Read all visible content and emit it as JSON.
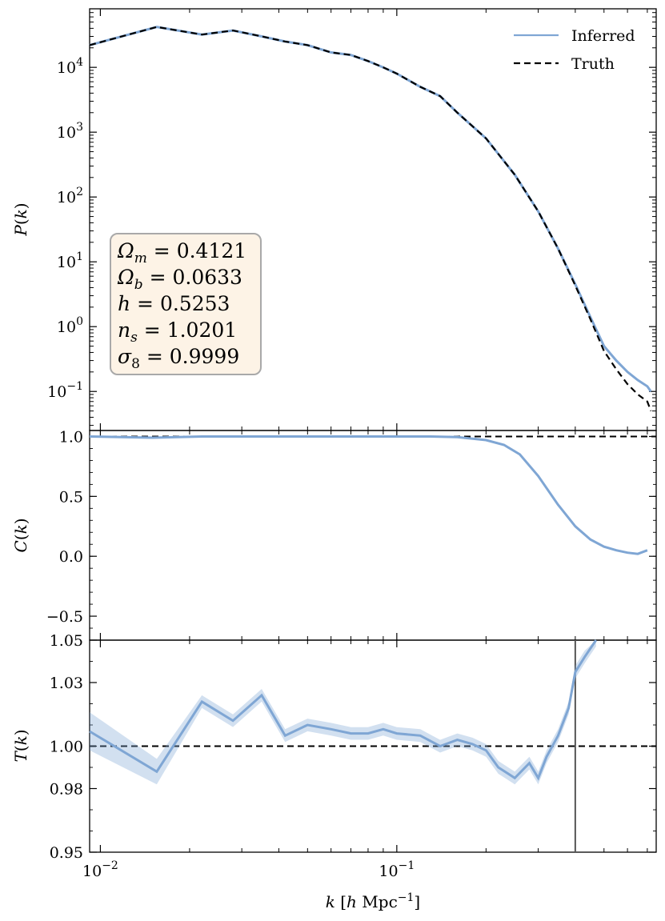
{
  "chart_data": [
    {
      "type": "line",
      "panel": "power-spectrum",
      "ylabel": "P(k)",
      "yscale": "log",
      "xscale": "log",
      "xlim": [
        0.0092,
        0.75
      ],
      "ylim": [
        0.025,
        80000
      ],
      "yticks": [
        {
          "value": 10000,
          "base": "10",
          "exp": "4"
        },
        {
          "value": 1000,
          "base": "10",
          "exp": "3"
        },
        {
          "value": 100,
          "base": "10",
          "exp": "2"
        },
        {
          "value": 10,
          "base": "10",
          "exp": "1"
        },
        {
          "value": 1,
          "base": "10",
          "exp": "0"
        },
        {
          "value": 0.1,
          "base": "10",
          "exp": "−1"
        }
      ],
      "legend": {
        "placement": "top-right",
        "entries": [
          "Inferred",
          "Truth"
        ]
      },
      "params_box": [
        {
          "sym": "Ω",
          "sub": "m",
          "rest": " = 0.4121"
        },
        {
          "sym": "Ω",
          "sub": "b",
          "rest": " = 0.0633"
        },
        {
          "sym": "h",
          "sub": "",
          "rest": " = 0.5253"
        },
        {
          "sym": "n",
          "sub": "s",
          "rest": " = 1.0201"
        },
        {
          "sym": "σ",
          "sub": "8",
          "rest": " = 0.9999"
        }
      ],
      "x": [
        0.0092,
        0.0155,
        0.022,
        0.028,
        0.035,
        0.042,
        0.05,
        0.06,
        0.07,
        0.08,
        0.09,
        0.1,
        0.12,
        0.14,
        0.16,
        0.2,
        0.25,
        0.3,
        0.35,
        0.4,
        0.45,
        0.5,
        0.55,
        0.6,
        0.65,
        0.7,
        0.72
      ],
      "series": [
        {
          "name": "Inferred",
          "color": "#7fa6d4",
          "style": "solid",
          "values": [
            22000,
            42000,
            32000,
            37000,
            30000,
            25000,
            22000,
            17000,
            15500,
            12500,
            10000,
            8000,
            5000,
            3600,
            2000,
            800,
            220,
            60,
            16,
            4.5,
            1.4,
            0.5,
            0.3,
            0.2,
            0.15,
            0.12,
            0.1
          ]
        },
        {
          "name": "Truth",
          "color": "#000000",
          "style": "dashed",
          "values": [
            22000,
            42000,
            32000,
            37000,
            30000,
            25000,
            22000,
            17000,
            15500,
            12500,
            10000,
            8000,
            5000,
            3600,
            2000,
            800,
            220,
            60,
            16,
            4.3,
            1.3,
            0.42,
            0.22,
            0.13,
            0.09,
            0.07,
            0.05
          ]
        }
      ]
    },
    {
      "type": "line",
      "panel": "cross-correlation",
      "ylabel": "C(k)",
      "xscale": "log",
      "xlim": [
        0.0092,
        0.75
      ],
      "ylim": [
        -0.7,
        1.05
      ],
      "yticks": [
        {
          "value": 1.0,
          "label": "1.0"
        },
        {
          "value": 0.5,
          "label": "0.5"
        },
        {
          "value": 0.0,
          "label": "0.0"
        },
        {
          "value": -0.5,
          "label": "−0.5"
        }
      ],
      "reference_line": 1.0,
      "x": [
        0.0092,
        0.015,
        0.022,
        0.03,
        0.05,
        0.08,
        0.1,
        0.13,
        0.16,
        0.2,
        0.23,
        0.26,
        0.3,
        0.35,
        0.4,
        0.45,
        0.5,
        0.55,
        0.6,
        0.65,
        0.7
      ],
      "series": [
        {
          "name": "Inferred",
          "color": "#7fa6d4",
          "values": [
            1.0,
            0.99,
            1.0,
            1.0,
            1.0,
            1.0,
            1.0,
            1.0,
            0.995,
            0.97,
            0.93,
            0.85,
            0.67,
            0.43,
            0.25,
            0.14,
            0.08,
            0.05,
            0.03,
            0.02,
            0.05
          ]
        }
      ]
    },
    {
      "type": "line",
      "panel": "transfer-function",
      "ylabel": "T(k)",
      "xlabel": "k [h Mpc⁻¹]",
      "xscale": "log",
      "xlim": [
        0.0092,
        0.75
      ],
      "ylim": [
        0.95,
        1.05
      ],
      "xticks": [
        {
          "value": 0.01,
          "base": "10",
          "exp": "−2"
        },
        {
          "value": 0.1,
          "base": "10",
          "exp": "−1"
        }
      ],
      "yticks": [
        {
          "value": 1.05,
          "label": "1.05"
        },
        {
          "value": 1.03,
          "label": "1.03"
        },
        {
          "value": 1.0,
          "label": "1.00"
        },
        {
          "value": 0.98,
          "label": "0.98"
        },
        {
          "value": 0.95,
          "label": "0.95"
        }
      ],
      "reference_line": 1.0,
      "vertical_line": 0.4,
      "x": [
        0.0092,
        0.0155,
        0.022,
        0.028,
        0.035,
        0.042,
        0.05,
        0.06,
        0.07,
        0.08,
        0.09,
        0.1,
        0.12,
        0.14,
        0.16,
        0.18,
        0.2,
        0.22,
        0.25,
        0.28,
        0.3,
        0.32,
        0.35,
        0.38,
        0.4,
        0.43,
        0.47
      ],
      "series": [
        {
          "name": "Inferred",
          "color": "#7fa6d4",
          "values": [
            1.007,
            0.988,
            1.021,
            1.012,
            1.024,
            1.005,
            1.01,
            1.008,
            1.006,
            1.006,
            1.008,
            1.006,
            1.005,
            1.0,
            1.003,
            1.001,
            0.998,
            0.99,
            0.985,
            0.992,
            0.985,
            0.995,
            1.005,
            1.018,
            1.035,
            1.042,
            1.05
          ]
        }
      ]
    }
  ]
}
